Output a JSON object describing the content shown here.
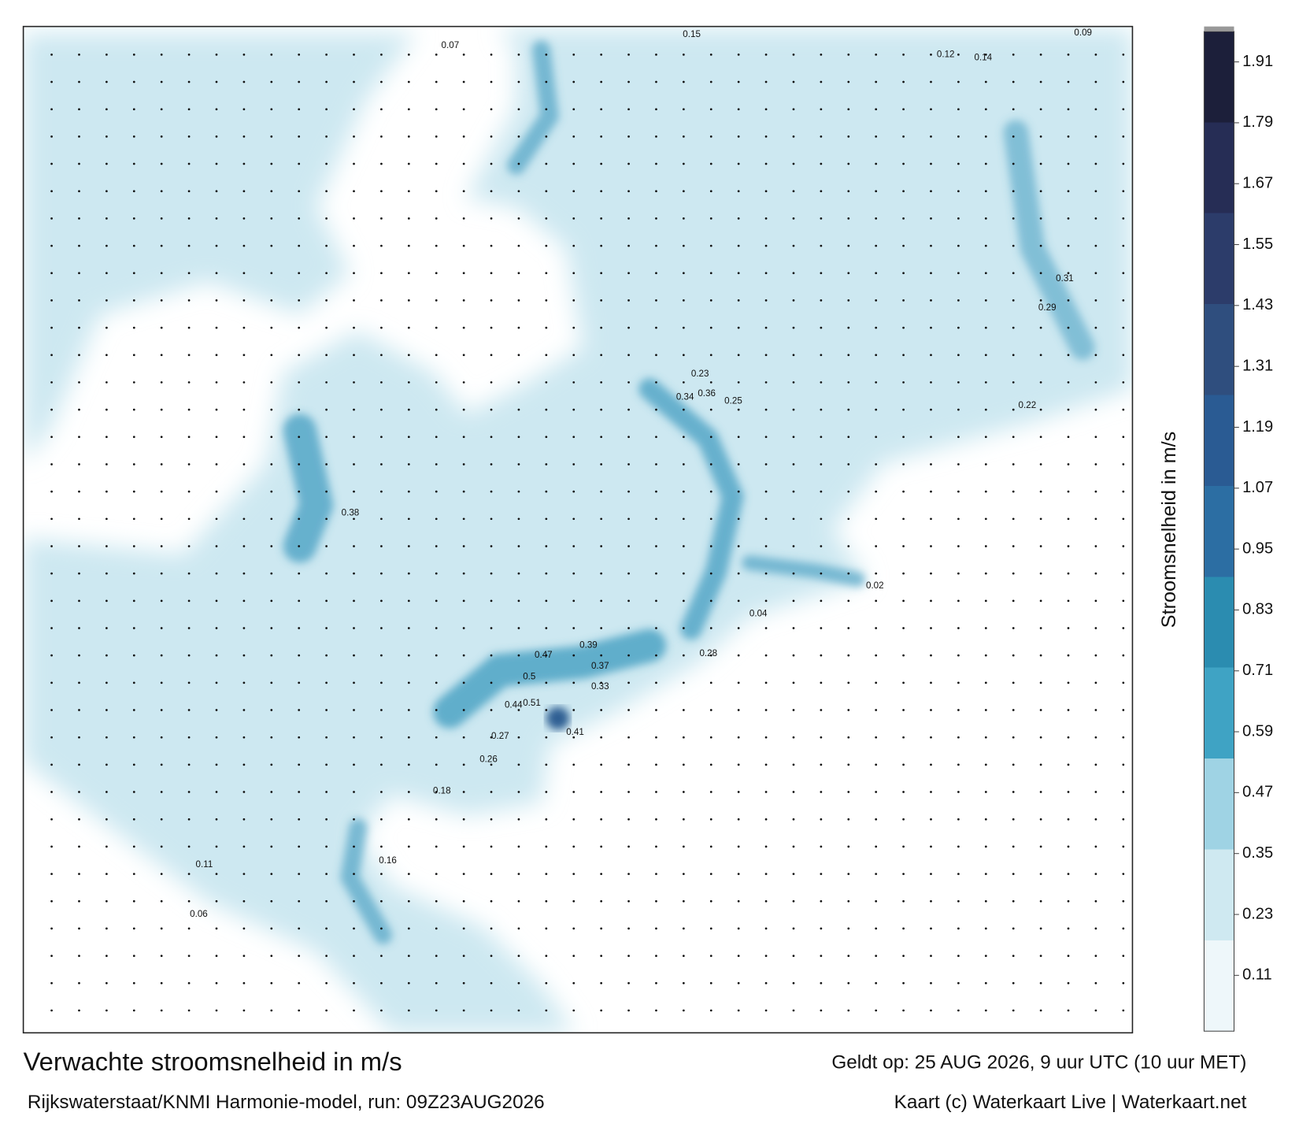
{
  "chart_data": {
    "type": "map",
    "title": "Verwachte stroomsnelheid in m/s",
    "subtitle": "Rijkswaterstaat/KNMI Harmonie-model, run: 09Z23AUG2026",
    "valid_time": "Geldt op: 25 AUG 2026, 9 uur UTC (10 uur MET)",
    "credit": "Kaart (c) Waterkaart Live | Waterkaart.net",
    "colorbar_label": "Stroomsnelheid in m/s",
    "clim": [
      0,
      1.97
    ],
    "cticks": [
      0.11,
      0.23,
      0.35,
      0.47,
      0.59,
      0.71,
      0.83,
      0.95,
      1.07,
      1.19,
      1.31,
      1.43,
      1.55,
      1.67,
      1.79,
      1.91
    ],
    "colorscale": [
      "#eef7fa",
      "#cfe9f1",
      "#9fd3e4",
      "#3fa3c4",
      "#2b8cb0",
      "#2c6ea3",
      "#2a5b93",
      "#2f4e7e",
      "#2c3c6a",
      "#262d55",
      "#1c1f3a"
    ],
    "map_labels": [
      0.15,
      0.23,
      0.25,
      0.36,
      0.34,
      0.41,
      0.47,
      0.5,
      0.39,
      0.37,
      0.33,
      0.51,
      0.44,
      0.38,
      0.27,
      0.26,
      0.29,
      0.22,
      0.18,
      0.12,
      0.09,
      0.07,
      0.04,
      0.02,
      0.11,
      0.31,
      0.28,
      0.14,
      0.16,
      0.06
    ]
  }
}
